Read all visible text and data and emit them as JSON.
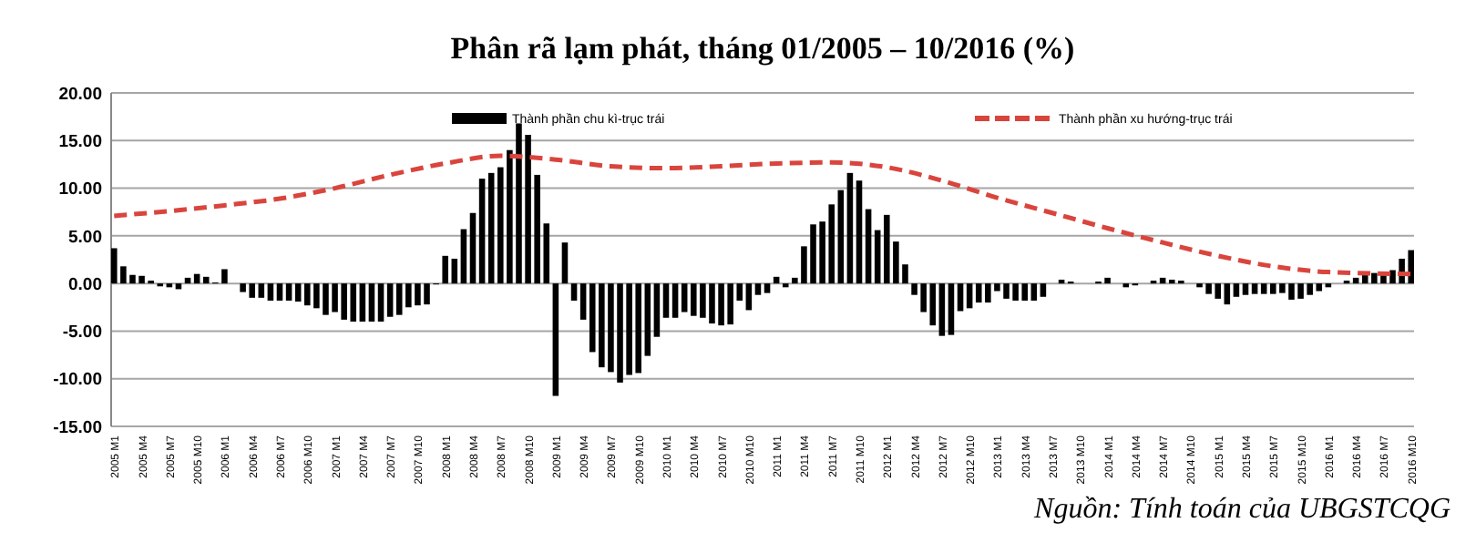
{
  "chart_data": {
    "type": "bar",
    "title": "Phân rã lạm phát, tháng 01/2005 – 10/2016 (%)",
    "categories": [
      "2005 M1",
      null,
      null,
      "2005 M4",
      null,
      null,
      "2005 M7",
      null,
      null,
      "2005 M10",
      null,
      null,
      "2006 M1",
      null,
      null,
      "2006 M4",
      null,
      null,
      "2006 M7",
      null,
      null,
      "2006 M10",
      null,
      null,
      "2007 M1",
      null,
      null,
      "2007 M4",
      null,
      null,
      "2007 M7",
      null,
      null,
      "2007 M10",
      null,
      null,
      "2008 M1",
      null,
      null,
      "2008 M4",
      null,
      null,
      "2008 M7",
      null,
      null,
      "2008 M10",
      null,
      null,
      "2009 M1",
      null,
      null,
      "2009 M4",
      null,
      null,
      "2009 M7",
      null,
      null,
      "2009 M10",
      null,
      null,
      "2010 M1",
      null,
      null,
      "2010 M4",
      null,
      null,
      "2010 M7",
      null,
      null,
      "2010 M10",
      null,
      null,
      "2011 M1",
      null,
      null,
      "2011 M4",
      null,
      null,
      "2011 M7",
      null,
      null,
      "2011 M10",
      null,
      null,
      "2012 M1",
      null,
      null,
      "2012 M4",
      null,
      null,
      "2012 M7",
      null,
      null,
      "2012 M10",
      null,
      null,
      "2013 M1",
      null,
      null,
      "2013 M4",
      null,
      null,
      "2013 M7",
      null,
      null,
      "2013 M10",
      null,
      null,
      "2014 M1",
      null,
      null,
      "2014 M4",
      null,
      null,
      "2014 M7",
      null,
      null,
      "2014 M10",
      null,
      null,
      "2015 M1",
      null,
      null,
      "2015 M4",
      null,
      null,
      "2015 M7",
      null,
      null,
      "2015 M10",
      null,
      null,
      "2016 M1",
      null,
      null,
      "2016 M4",
      null,
      null,
      "2016 M7",
      null,
      null,
      "2016 M10"
    ],
    "series": [
      {
        "name": "Thành phần chu kì-trục trái",
        "color": "#000000",
        "values": [
          3.7,
          1.8,
          0.9,
          0.8,
          0.3,
          -0.3,
          -0.4,
          -0.6,
          0.6,
          1.0,
          0.7,
          0.1,
          1.5,
          0,
          -0.9,
          -1.5,
          -1.5,
          -1.8,
          -1.8,
          -1.8,
          -1.9,
          -2.3,
          -2.6,
          -3.3,
          -3.0,
          -3.8,
          -4.0,
          -4.0,
          -4.0,
          -4.0,
          -3.5,
          -3.3,
          -2.5,
          -2.3,
          -2.2,
          -0.1,
          2.9,
          2.6,
          5.7,
          7.4,
          11.0,
          11.6,
          12.2,
          14.0,
          16.8,
          15.6,
          11.4,
          6.3,
          -11.8,
          4.3,
          -1.8,
          -3.8,
          -7.2,
          -8.8,
          -9.3,
          -10.4,
          -9.6,
          -9.4,
          -7.6,
          -5.6,
          -3.6,
          -3.6,
          -3.0,
          -3.4,
          -3.6,
          -4.2,
          -4.4,
          -4.3,
          -1.8,
          -2.8,
          -1.2,
          -1.0,
          0.7,
          -0.4,
          0.6,
          3.9,
          6.2,
          6.5,
          8.3,
          9.8,
          11.6,
          10.8,
          7.8,
          5.6,
          7.2,
          4.4,
          2.0,
          -1.2,
          -3.0,
          -4.4,
          -5.5,
          -5.4,
          -2.9,
          -2.6,
          -2.0,
          -2.0,
          -0.8,
          -1.6,
          -1.8,
          -1.8,
          -1.8,
          -1.4,
          0,
          0.4,
          0.2,
          0,
          0,
          0.2,
          0.6,
          0,
          -0.4,
          -0.2,
          0,
          0.3,
          0.6,
          0.4,
          0.3,
          0,
          -0.4,
          -1.1,
          -1.6,
          -2.2,
          -1.4,
          -1.2,
          -1.1,
          -1.1,
          -1.1,
          -1.0,
          -1.7,
          -1.6,
          -1.2,
          -0.8,
          -0.4,
          0,
          0.3,
          0.6,
          1.1,
          1.1,
          1.2,
          1.4,
          2.6,
          3.5
        ]
      },
      {
        "name": "Thành phần xu hướng-trục trái",
        "type": "line",
        "color": "#d9453d",
        "line_style": "dashed",
        "marker": "none",
        "x": [
          "2005 M1",
          "2005 M7",
          "2006 M1",
          "2006 M7",
          "2007 M1",
          "2007 M7",
          "2008 M1",
          "2008 M7",
          "2009 M1",
          "2009 M7",
          "2010 M1",
          "2010 M7",
          "2011 M1",
          "2011 M7",
          "2012 M1",
          "2012 M7",
          "2013 M1",
          "2013 M7",
          "2014 M1",
          "2014 M7",
          "2015 M1",
          "2015 M7",
          "2016 M1",
          "2016 M10"
        ],
        "values": [
          7.1,
          7.6,
          8.2,
          8.9,
          10.0,
          11.4,
          12.6,
          13.4,
          13.0,
          12.3,
          12.1,
          12.3,
          12.6,
          12.7,
          12.2,
          10.8,
          9.0,
          7.4,
          5.8,
          4.3,
          2.9,
          1.8,
          1.2,
          1.0
        ]
      }
    ],
    "ylim": [
      -15,
      20
    ],
    "yticks": [
      {
        "value": -15,
        "label": "-15.00"
      },
      {
        "value": -10,
        "label": "-10.00"
      },
      {
        "value": -5,
        "label": "-5.00"
      },
      {
        "value": 0,
        "label": "0.00"
      },
      {
        "value": 5,
        "label": "5.00"
      },
      {
        "value": 10,
        "label": "10.00"
      },
      {
        "value": 15,
        "label": "15.00"
      },
      {
        "value": 20,
        "label": "20.00"
      }
    ],
    "grid": "y",
    "legend": "top",
    "annotations": [
      "Nguồn: Tính toán của UBGSTCQG"
    ]
  }
}
